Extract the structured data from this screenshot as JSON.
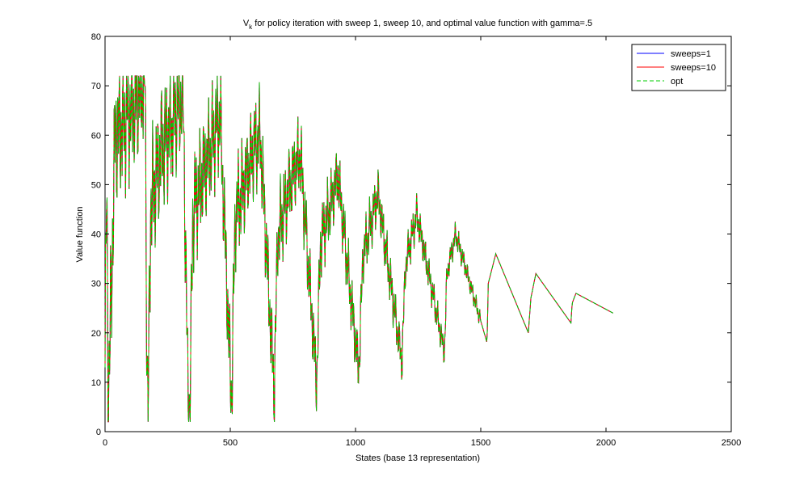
{
  "chart_data": {
    "type": "line",
    "title": "V",
    "title_sub": "k",
    "title_rest": " for policy iteration with sweep 1, sweep 10, and optimal value function with gamma=.5",
    "xlabel": "States (base 13 representation)",
    "ylabel": "Value function",
    "xlim": [
      0,
      2500
    ],
    "ylim": [
      0,
      80
    ],
    "xticks": [
      0,
      500,
      1000,
      1500,
      2000,
      2500
    ],
    "yticks": [
      0,
      10,
      20,
      30,
      40,
      50,
      60,
      70,
      80
    ],
    "grid": false,
    "legend_position": "top-right",
    "envelope": [
      {
        "x": 0,
        "y": 13
      },
      {
        "x": 6,
        "y": 48
      },
      {
        "x": 14,
        "y": 6
      },
      {
        "x": 40,
        "y": 60
      },
      {
        "x": 80,
        "y": 63
      },
      {
        "x": 120,
        "y": 67
      },
      {
        "x": 160,
        "y": 72
      },
      {
        "x": 168,
        "y": 12
      },
      {
        "x": 172,
        "y": 2
      },
      {
        "x": 182,
        "y": 46
      },
      {
        "x": 220,
        "y": 56
      },
      {
        "x": 290,
        "y": 66
      },
      {
        "x": 312,
        "y": 68
      },
      {
        "x": 330,
        "y": 10
      },
      {
        "x": 340,
        "y": 4
      },
      {
        "x": 350,
        "y": 44
      },
      {
        "x": 400,
        "y": 54
      },
      {
        "x": 460,
        "y": 64
      },
      {
        "x": 505,
        "y": 6
      },
      {
        "x": 520,
        "y": 44
      },
      {
        "x": 600,
        "y": 58
      },
      {
        "x": 620,
        "y": 60
      },
      {
        "x": 675,
        "y": 8
      },
      {
        "x": 690,
        "y": 40
      },
      {
        "x": 760,
        "y": 54
      },
      {
        "x": 780,
        "y": 56
      },
      {
        "x": 845,
        "y": 10
      },
      {
        "x": 860,
        "y": 38
      },
      {
        "x": 930,
        "y": 52
      },
      {
        "x": 1013,
        "y": 12
      },
      {
        "x": 1030,
        "y": 36
      },
      {
        "x": 1090,
        "y": 48
      },
      {
        "x": 1185,
        "y": 14
      },
      {
        "x": 1200,
        "y": 34
      },
      {
        "x": 1245,
        "y": 44
      },
      {
        "x": 1355,
        "y": 16
      },
      {
        "x": 1365,
        "y": 32
      },
      {
        "x": 1400,
        "y": 40
      },
      {
        "x": 1525,
        "y": 18
      },
      {
        "x": 1530,
        "y": 30
      },
      {
        "x": 1560,
        "y": 36
      },
      {
        "x": 1690,
        "y": 20
      },
      {
        "x": 1700,
        "y": 27
      },
      {
        "x": 1720,
        "y": 32
      },
      {
        "x": 1860,
        "y": 22
      },
      {
        "x": 1865,
        "y": 26
      },
      {
        "x": 1880,
        "y": 28
      },
      {
        "x": 2028,
        "y": 24
      }
    ],
    "series": [
      {
        "name": "sweeps=1",
        "color": "#0000ff",
        "style": "solid"
      },
      {
        "name": "sweeps=10",
        "color": "#ff0000",
        "style": "solid"
      },
      {
        "name": "opt",
        "color": "#00cc00",
        "style": "dashed"
      }
    ]
  }
}
